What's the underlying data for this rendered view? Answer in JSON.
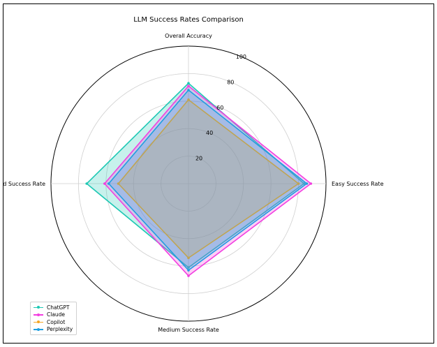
{
  "chart_data": {
    "type": "radar",
    "title": "LLM Success Rates Comparison",
    "axes": [
      "Overall Accuracy",
      "Easy Success Rate",
      "Medium Success Rate",
      "Hard Success Rate"
    ],
    "radial_range": [
      0,
      100
    ],
    "radial_ticks": [
      "20",
      "40",
      "60",
      "80",
      "100"
    ],
    "grid": true,
    "legend_position": "bottom-left",
    "series": [
      {
        "name": "ChatGPT",
        "values": [
          73,
          84,
          61,
          74
        ],
        "color": "#1ec8b4"
      },
      {
        "name": "Claude",
        "values": [
          71,
          89,
          67,
          61
        ],
        "color": "#f23ee0"
      },
      {
        "name": "Copilot",
        "values": [
          61,
          80,
          54,
          51
        ],
        "color": "#f5a623"
      },
      {
        "name": "Perplexity",
        "values": [
          68,
          86,
          63,
          58
        ],
        "color": "#1f9fe0"
      }
    ]
  }
}
